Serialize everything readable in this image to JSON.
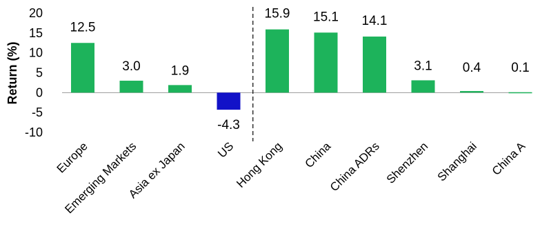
{
  "chart_data": {
    "type": "bar",
    "title": "",
    "xlabel": "",
    "ylabel": "Return (%)",
    "ylim": [
      -10,
      20
    ],
    "yticks": [
      20,
      15,
      10,
      5,
      0,
      -5,
      -10
    ],
    "ytick_labels": [
      "20",
      "15",
      "10",
      "5",
      "0",
      "-5",
      "-10"
    ],
    "grid": false,
    "legend": "none",
    "categories": [
      "Europe",
      "Emerging Markets",
      "Asia ex Japan",
      "US",
      "Hong Kong",
      "China",
      "China ADRs",
      "Shenzhen",
      "Shanghai",
      "China A"
    ],
    "values": [
      12.5,
      3.0,
      1.9,
      -4.3,
      15.9,
      15.1,
      14.1,
      3.1,
      0.4,
      0.1
    ],
    "value_labels": [
      "12.5",
      "3.0",
      "1.9",
      "-4.3",
      "15.9",
      "15.1",
      "14.1",
      "3.1",
      "0.4",
      "0.1"
    ],
    "colors": [
      "#1db35b",
      "#1db35b",
      "#1db35b",
      "#1212c8",
      "#1db35b",
      "#1db35b",
      "#1db35b",
      "#1db35b",
      "#1db35b",
      "#1db35b"
    ],
    "separator_after_index": 3
  }
}
